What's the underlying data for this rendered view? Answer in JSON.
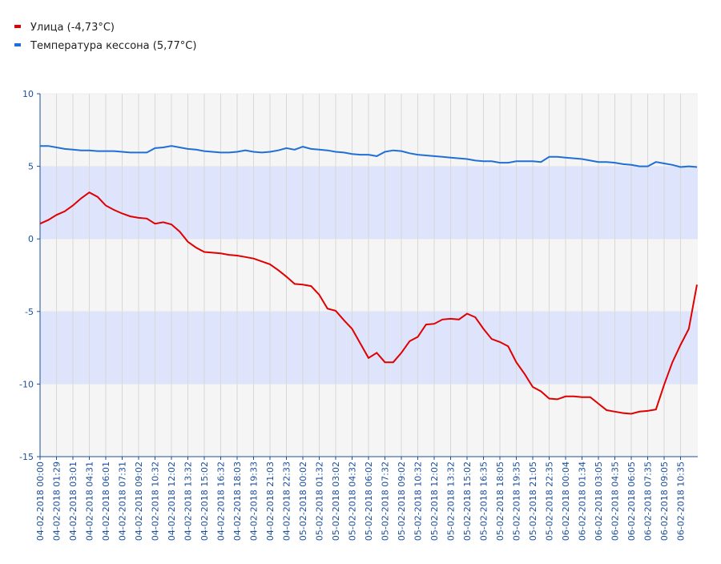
{
  "chart_data": {
    "type": "line",
    "categories": [
      "04-02-2018 00:00",
      null,
      "04-02-2018 01:29",
      null,
      "04-02-2018 03:01",
      null,
      "04-02-2018 04:31",
      null,
      "04-02-2018 06:01",
      null,
      "04-02-2018 07:31",
      null,
      "04-02-2018 09:02",
      null,
      "04-02-2018 10:32",
      null,
      "04-02-2018 12:02",
      null,
      "04-02-2018 13:32",
      null,
      "04-02-2018 15:02",
      null,
      "04-02-2018 16:32",
      null,
      "04-02-2018 18:03",
      null,
      "04-02-2018 19:33",
      null,
      "04-02-2018 21:03",
      null,
      "04-02-2018 22:33",
      null,
      "05-02-2018 00:02",
      null,
      "05-02-2018 01:32",
      null,
      "05-02-2018 03:02",
      null,
      "05-02-2018 04:32",
      null,
      "05-02-2018 06:02",
      null,
      "05-02-2018 07:32",
      null,
      "05-02-2018 09:02",
      null,
      "05-02-2018 10:32",
      null,
      "05-02-2018 12:02",
      null,
      "05-02-2018 13:32",
      null,
      "05-02-2018 15:02",
      null,
      "05-02-2018 16:35",
      null,
      "05-02-2018 18:05",
      null,
      "05-02-2018 19:35",
      null,
      "05-02-2018 21:05",
      null,
      "05-02-2018 22:35",
      null,
      "06-02-2018 00:04",
      null,
      "06-02-2018 01:34",
      null,
      "06-02-2018 03:05",
      null,
      "06-02-2018 04:35",
      null,
      "06-02-2018 06:05",
      null,
      "06-02-2018 07:35",
      null,
      "06-02-2018 09:05",
      null,
      "06-02-2018 10:35",
      null,
      null
    ],
    "series": [
      {
        "name": "Улица (-4,73°C)",
        "color": "#e00000",
        "values": [
          1.05,
          1.3,
          1.65,
          1.9,
          2.3,
          2.8,
          3.2,
          2.9,
          2.3,
          2.0,
          1.75,
          1.55,
          1.45,
          1.4,
          1.05,
          1.15,
          1.0,
          0.5,
          -0.2,
          -0.6,
          -0.9,
          -0.95,
          -1.0,
          -1.1,
          -1.15,
          -1.25,
          -1.35,
          -1.55,
          -1.75,
          -2.15,
          -2.6,
          -3.1,
          -3.15,
          -3.25,
          -3.85,
          -4.8,
          -4.95,
          -5.6,
          -6.2,
          -7.2,
          -8.2,
          -7.85,
          -8.5,
          -8.5,
          -7.85,
          -7.05,
          -6.75,
          -5.9,
          -5.85,
          -5.55,
          -5.5,
          -5.55,
          -5.15,
          -5.4,
          -6.2,
          -6.9,
          -7.1,
          -7.4,
          -8.5,
          -9.3,
          -10.2,
          -10.5,
          -11.0,
          -11.05,
          -10.85,
          -10.85,
          -10.9,
          -10.9,
          -11.35,
          -11.8,
          -11.9,
          -12.0,
          -12.05,
          -11.9,
          -11.85,
          -11.75,
          -10.05,
          -8.5,
          -7.3,
          -6.2,
          -3.15
        ]
      },
      {
        "name": "Температура кессона (5,77°C)",
        "color": "#1f6fd6",
        "values": [
          6.4,
          6.4,
          6.3,
          6.2,
          6.15,
          6.1,
          6.1,
          6.05,
          6.05,
          6.05,
          6.0,
          5.95,
          5.95,
          5.95,
          6.25,
          6.3,
          6.4,
          6.3,
          6.2,
          6.15,
          6.05,
          6.0,
          5.95,
          5.95,
          6.0,
          6.1,
          6.0,
          5.95,
          6.0,
          6.1,
          6.25,
          6.15,
          6.35,
          6.2,
          6.15,
          6.1,
          6.0,
          5.95,
          5.85,
          5.8,
          5.8,
          5.7,
          6.0,
          6.1,
          6.05,
          5.9,
          5.8,
          5.75,
          5.7,
          5.65,
          5.6,
          5.55,
          5.5,
          5.4,
          5.35,
          5.35,
          5.25,
          5.25,
          5.35,
          5.35,
          5.35,
          5.3,
          5.65,
          5.65,
          5.6,
          5.55,
          5.5,
          5.4,
          5.3,
          5.3,
          5.25,
          5.15,
          5.1,
          5.0,
          5.0,
          5.3,
          5.2,
          5.1,
          4.95,
          5.0,
          4.95
        ]
      }
    ],
    "ylim": [
      -15,
      10
    ],
    "yticks": [
      -15,
      -10,
      -5,
      0,
      5,
      10
    ],
    "grid": true,
    "band_colors": [
      "#f5f5f5",
      "#dde4fb"
    ]
  }
}
